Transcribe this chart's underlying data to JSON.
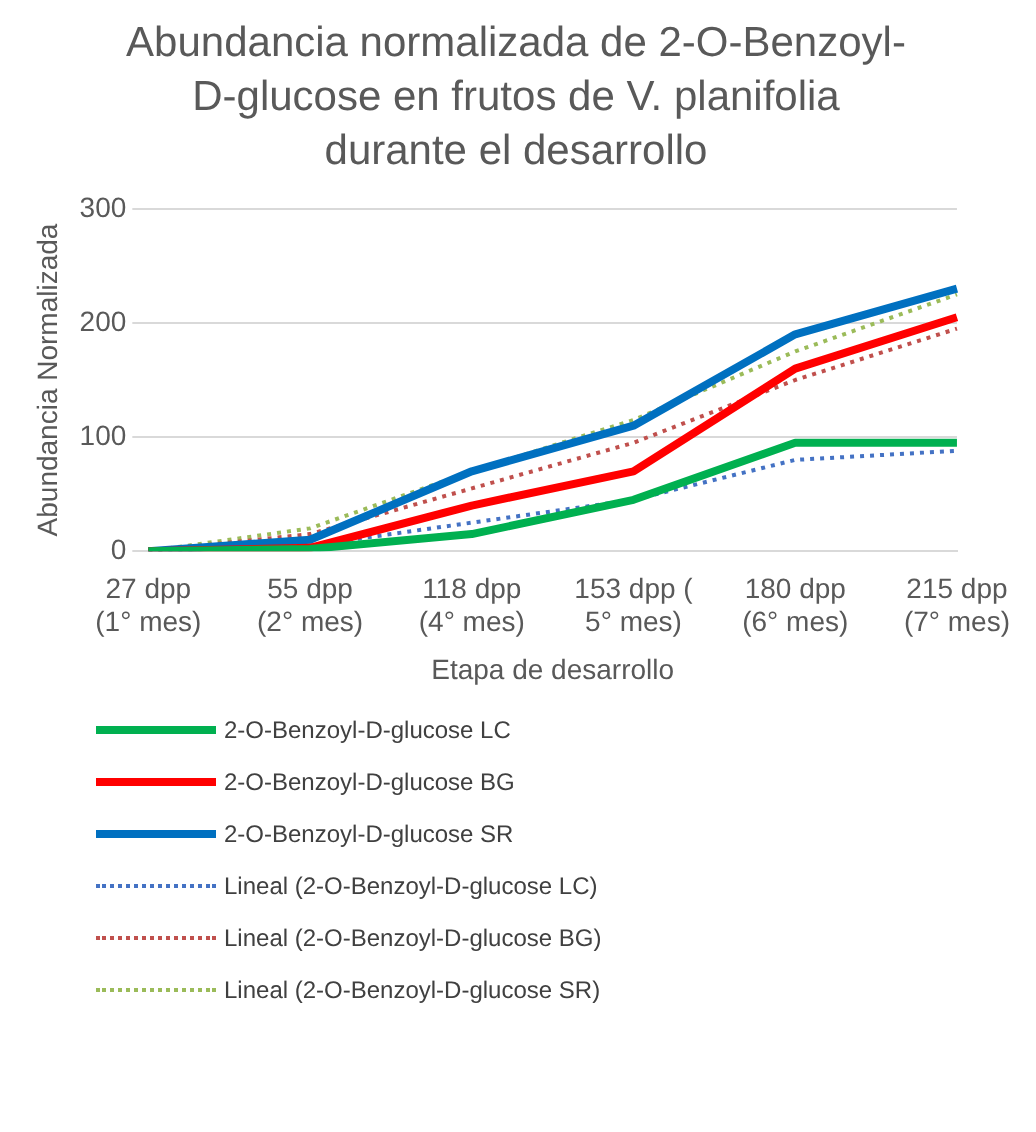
{
  "chart_data": {
    "type": "line",
    "title": "Abundancia normalizada de 2-O-Benzoyl-D-glucose en frutos de V. planifolia durante el desarrollo",
    "xlabel": "Etapa de desarrollo",
    "ylabel": "Abundancia Normalizada",
    "categories": [
      "27 dpp (1° mes)",
      "55 dpp (2° mes)",
      "118 dpp (4° mes)",
      "153 dpp ( 5° mes)",
      "180 dpp (6° mes)",
      "215 dpp (7° mes)"
    ],
    "series": [
      {
        "name": "2-O-Benzoyl-D-glucose LC",
        "color": "#00b050",
        "values": [
          0,
          2,
          15,
          45,
          95,
          95
        ]
      },
      {
        "name": "2-O-Benzoyl-D-glucose BG",
        "color": "#ff0000",
        "values": [
          0,
          3,
          40,
          70,
          160,
          205
        ]
      },
      {
        "name": "2-O-Benzoyl-D-glucose SR",
        "color": "#0070c0",
        "values": [
          0,
          10,
          70,
          110,
          190,
          230
        ]
      },
      {
        "name": "Lineal (2-O-Benzoyl-D-glucose LC)",
        "color": "#4472c4",
        "line_style": "dotted",
        "values": [
          0,
          5,
          25,
          45,
          80,
          88
        ]
      },
      {
        "name": "Lineal (2-O-Benzoyl-D-glucose BG)",
        "color": "#c0504d",
        "line_style": "dotted",
        "values": [
          0,
          15,
          55,
          95,
          150,
          195
        ]
      },
      {
        "name": "Lineal (2-O-Benzoyl-D-glucose SR)",
        "color": "#9bbb59",
        "line_style": "dotted",
        "values": [
          0,
          20,
          70,
          115,
          175,
          225
        ]
      }
    ],
    "ylim": [
      0,
      300
    ],
    "yticks": [
      0,
      100,
      200,
      300
    ],
    "grid": "y",
    "legend": "bottom",
    "marker": "none"
  }
}
